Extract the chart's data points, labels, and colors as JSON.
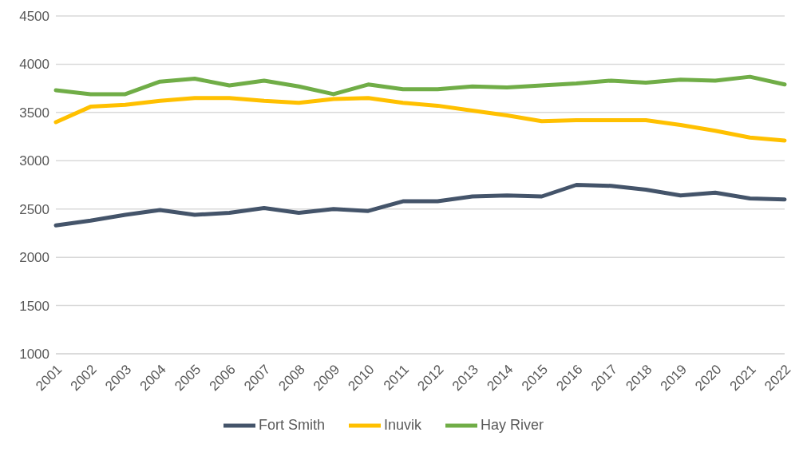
{
  "chart_data": {
    "type": "line",
    "categories": [
      "2001",
      "2002",
      "2003",
      "2004",
      "2005",
      "2006",
      "2007",
      "2008",
      "2009",
      "2010",
      "2011",
      "2012",
      "2013",
      "2014",
      "2015",
      "2016",
      "2017",
      "2018",
      "2019",
      "2020",
      "2021",
      "2022"
    ],
    "series": [
      {
        "name": "Fort Smith",
        "color": "#44546a",
        "values": [
          2330,
          2380,
          2440,
          2490,
          2440,
          2460,
          2510,
          2460,
          2500,
          2480,
          2580,
          2580,
          2630,
          2640,
          2630,
          2750,
          2740,
          2700,
          2640,
          2670,
          2610,
          2600
        ]
      },
      {
        "name": "Inuvik",
        "color": "#ffc000",
        "values": [
          3400,
          3560,
          3580,
          3620,
          3650,
          3650,
          3620,
          3600,
          3640,
          3650,
          3600,
          3570,
          3520,
          3470,
          3410,
          3420,
          3420,
          3420,
          3370,
          3310,
          3240,
          3210
        ]
      },
      {
        "name": "Hay River",
        "color": "#70ad47",
        "values": [
          3730,
          3690,
          3690,
          3820,
          3850,
          3780,
          3830,
          3770,
          3690,
          3790,
          3740,
          3740,
          3770,
          3760,
          3780,
          3800,
          3830,
          3810,
          3840,
          3830,
          3870,
          3790
        ]
      }
    ],
    "ylim": [
      1000,
      4500
    ],
    "yticks": [
      1000,
      1500,
      2000,
      2500,
      3000,
      3500,
      4000,
      4500
    ],
    "grid": "y",
    "legend": "bottom",
    "marker": "none",
    "line_style": "solid"
  }
}
